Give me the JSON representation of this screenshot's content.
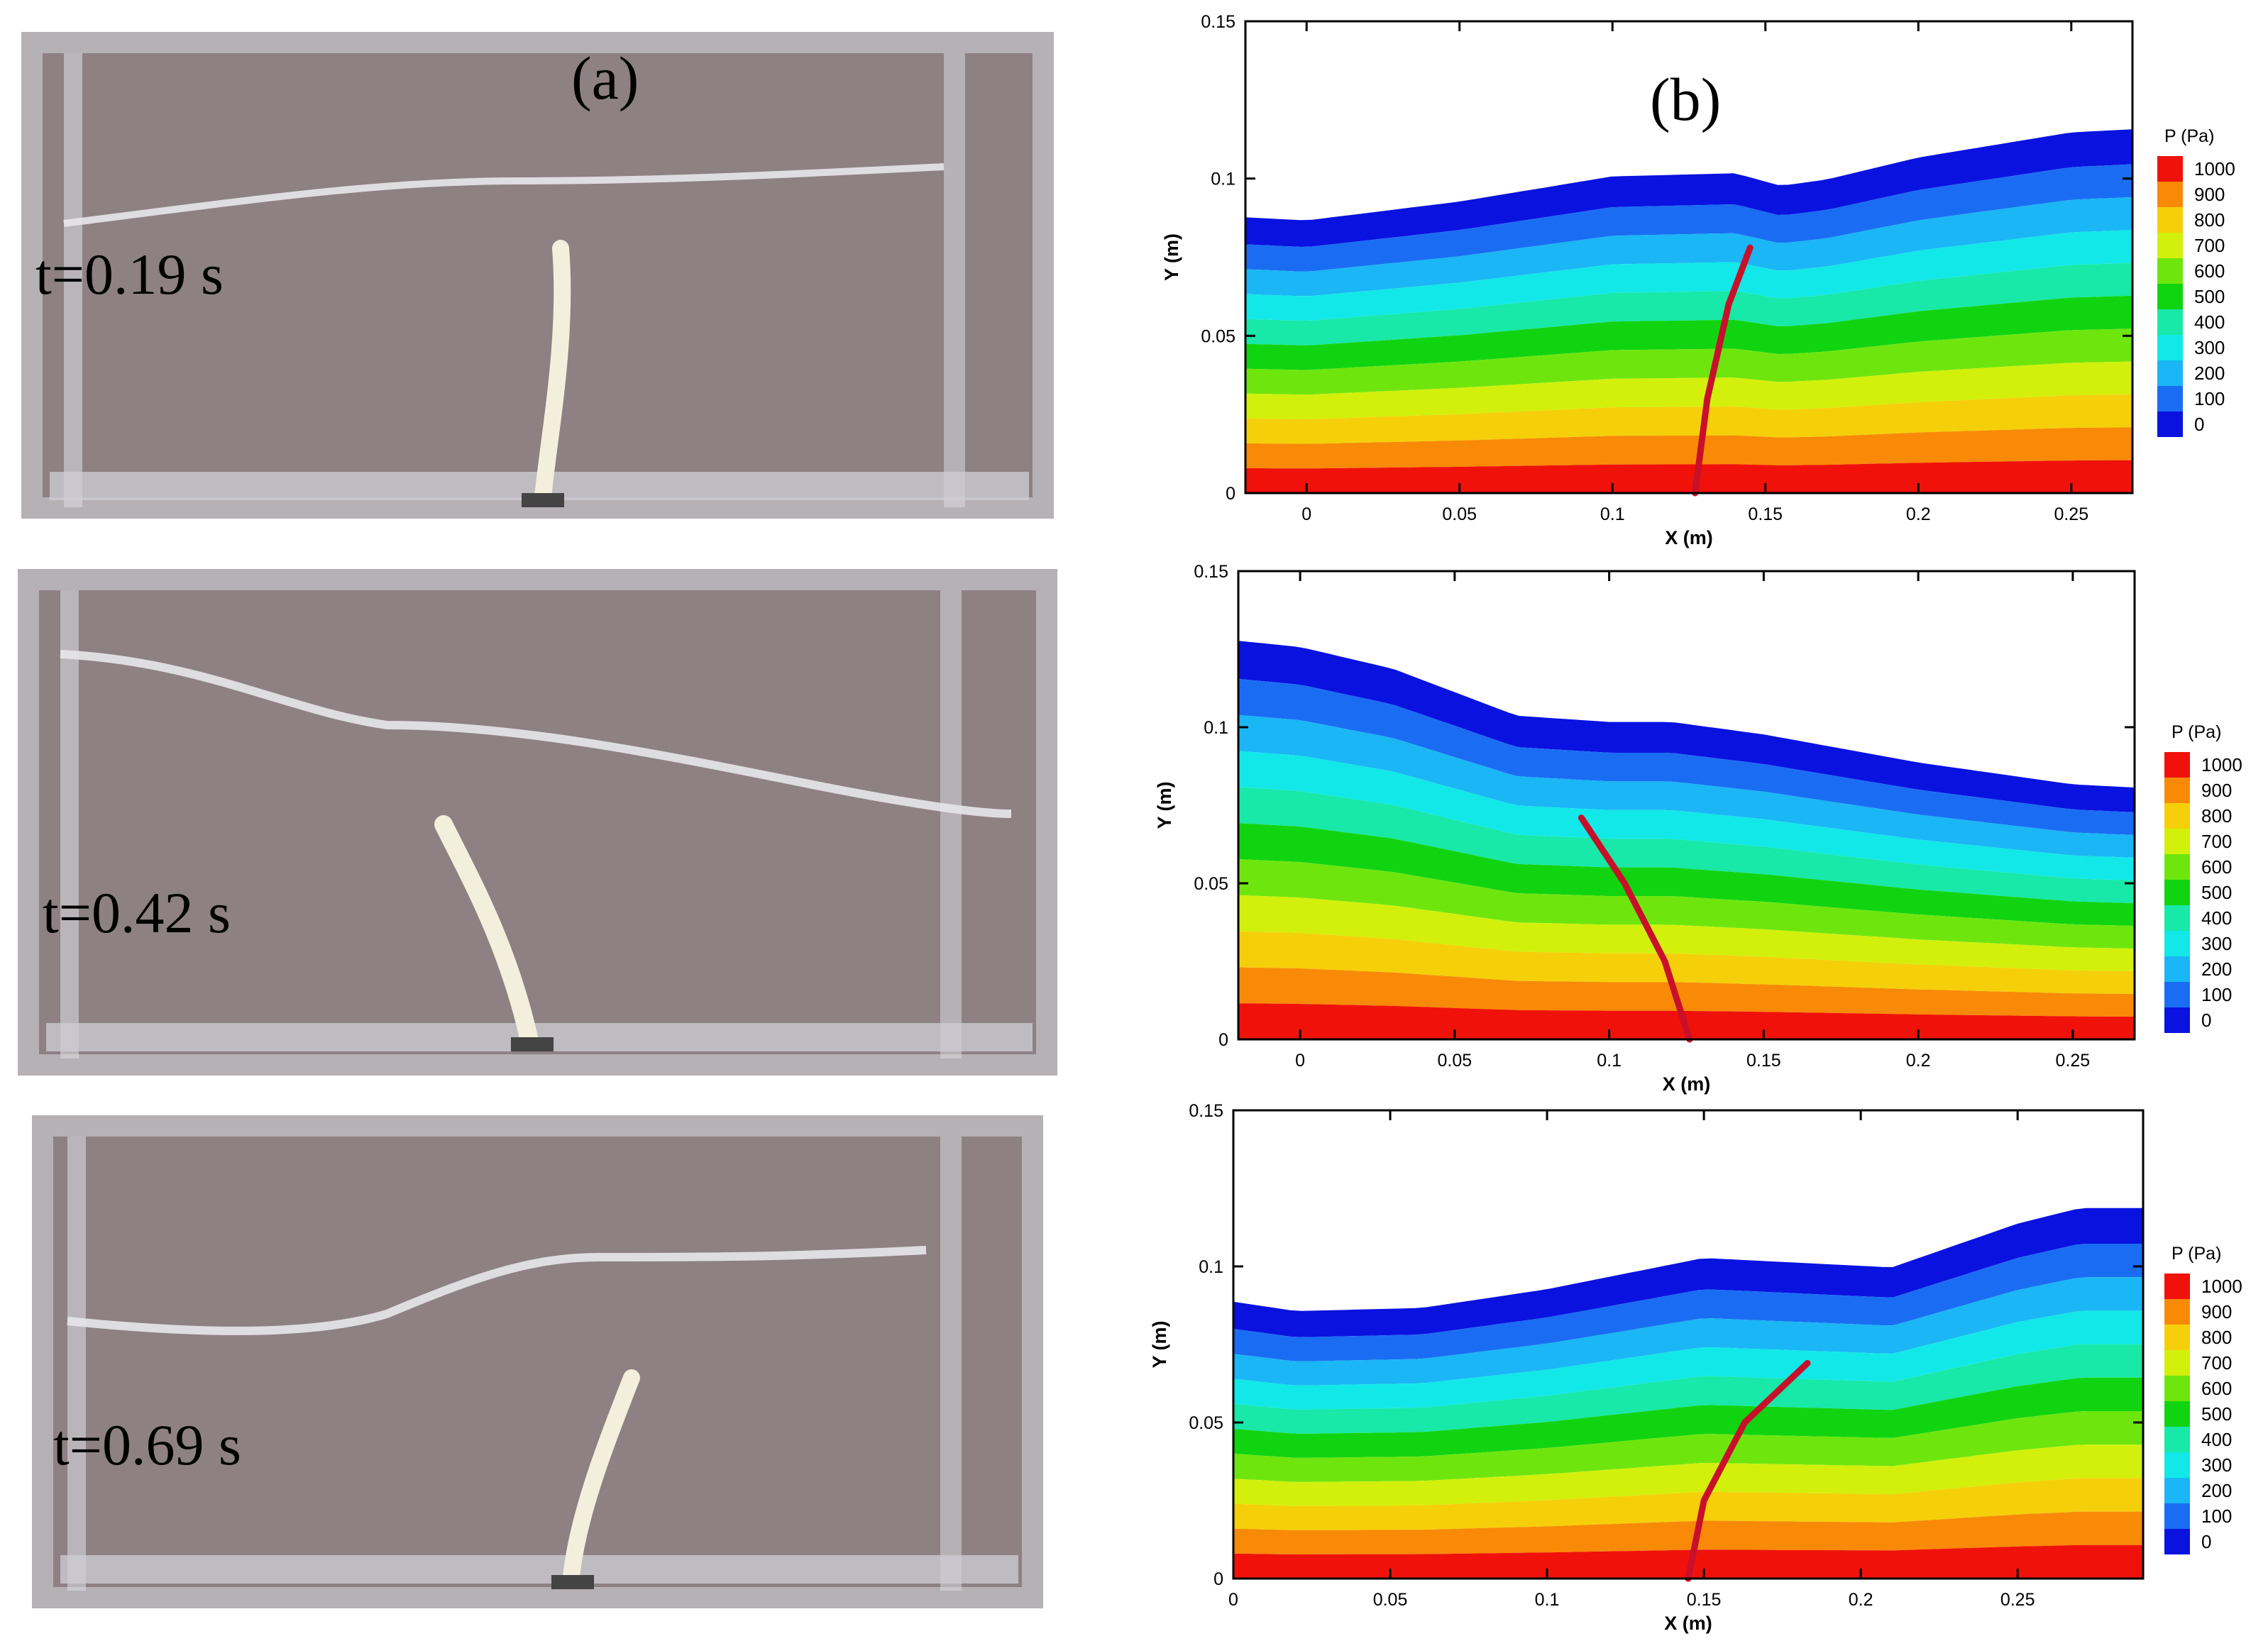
{
  "panel_labels": {
    "a": "(a)",
    "b": "(b)"
  },
  "time_labels": [
    "t=0.19 s",
    "t=0.42 s",
    "t=0.69 s"
  ],
  "colors": {
    "flap": "#f3efdc",
    "tank": "#8d8183",
    "pressure_scale": [
      "#0a12e0",
      "#1a6df2",
      "#1ab6f5",
      "#12e8e8",
      "#18e8a8",
      "#11d411",
      "#6ee60e",
      "#d2f00c",
      "#f5d00a",
      "#f88a07",
      "#f0120a"
    ],
    "flap_line": "#c8102a"
  },
  "chart_data": [
    {
      "type": "heatmap",
      "title": "",
      "xlabel": "X (m)",
      "ylabel": "Y (m)",
      "xlim": [
        -0.02,
        0.27
      ],
      "ylim": [
        0,
        0.15
      ],
      "xticks": [
        0,
        0.05,
        0.1,
        0.15,
        0.2,
        0.25
      ],
      "xtick_labels": [
        "0",
        "0.05",
        "0.1",
        "0.15",
        "0.2",
        "0.25"
      ],
      "yticks": [
        0,
        0.05,
        0.1,
        0.15
      ],
      "ytick_labels": [
        "0",
        "0.05",
        "0.1",
        "0.15"
      ],
      "legend_title": "P (Pa)",
      "legend_levels": [
        "1000",
        "900",
        "800",
        "700",
        "600",
        "500",
        "400",
        "300",
        "200",
        "100",
        "0"
      ],
      "free_surface": {
        "x": [
          -0.02,
          0.0,
          0.05,
          0.1,
          0.14,
          0.155,
          0.17,
          0.2,
          0.25,
          0.27
        ],
        "y": [
          0.087,
          0.086,
          0.092,
          0.1,
          0.101,
          0.097,
          0.099,
          0.106,
          0.114,
          0.115
        ]
      },
      "flap": {
        "x": [
          0.127,
          0.131,
          0.138,
          0.145
        ],
        "y": [
          0.0,
          0.03,
          0.06,
          0.078
        ]
      }
    },
    {
      "type": "heatmap",
      "title": "",
      "xlabel": "X (m)",
      "ylabel": "Y (m)",
      "xlim": [
        -0.02,
        0.27
      ],
      "ylim": [
        0,
        0.15
      ],
      "xticks": [
        0,
        0.05,
        0.1,
        0.15,
        0.2,
        0.25
      ],
      "xtick_labels": [
        "0",
        "0.05",
        "0.1",
        "0.15",
        "0.2",
        "0.25"
      ],
      "yticks": [
        0,
        0.05,
        0.1,
        0.15
      ],
      "ytick_labels": [
        "0",
        "0.05",
        "0.1",
        "0.15"
      ],
      "legend_title": "P (Pa)",
      "legend_levels": [
        "1000",
        "900",
        "800",
        "700",
        "600",
        "500",
        "400",
        "300",
        "200",
        "100",
        "0"
      ],
      "free_surface": {
        "x": [
          -0.02,
          0.0,
          0.03,
          0.07,
          0.1,
          0.12,
          0.15,
          0.2,
          0.25,
          0.27
        ],
        "y": [
          0.127,
          0.125,
          0.118,
          0.103,
          0.101,
          0.101,
          0.097,
          0.088,
          0.081,
          0.08
        ]
      },
      "flap": {
        "x": [
          0.126,
          0.118,
          0.105,
          0.091
        ],
        "y": [
          0.0,
          0.025,
          0.05,
          0.071
        ]
      }
    },
    {
      "type": "heatmap",
      "title": "",
      "xlabel": "X (m)",
      "ylabel": "Y (m)",
      "xlim": [
        0,
        0.29
      ],
      "ylim": [
        0,
        0.15
      ],
      "xticks": [
        0,
        0.05,
        0.1,
        0.15,
        0.2,
        0.25
      ],
      "xtick_labels": [
        "0",
        "0.05",
        "0.1",
        "0.15",
        "0.2",
        "0.25"
      ],
      "yticks": [
        0,
        0.05,
        0.1,
        0.15
      ],
      "ytick_labels": [
        "0",
        "0.05",
        "0.1",
        "0.15"
      ],
      "legend_title": "P (Pa)",
      "legend_levels": [
        "1000",
        "900",
        "800",
        "700",
        "600",
        "500",
        "400",
        "300",
        "200",
        "100",
        "0"
      ],
      "free_surface": {
        "x": [
          0.0,
          0.02,
          0.06,
          0.1,
          0.15,
          0.19,
          0.21,
          0.25,
          0.27,
          0.29
        ],
        "y": [
          0.088,
          0.085,
          0.086,
          0.092,
          0.102,
          0.1,
          0.099,
          0.113,
          0.118,
          0.118
        ]
      },
      "flap": {
        "x": [
          0.145,
          0.15,
          0.163,
          0.183
        ],
        "y": [
          0.0,
          0.025,
          0.05,
          0.069
        ]
      }
    }
  ]
}
